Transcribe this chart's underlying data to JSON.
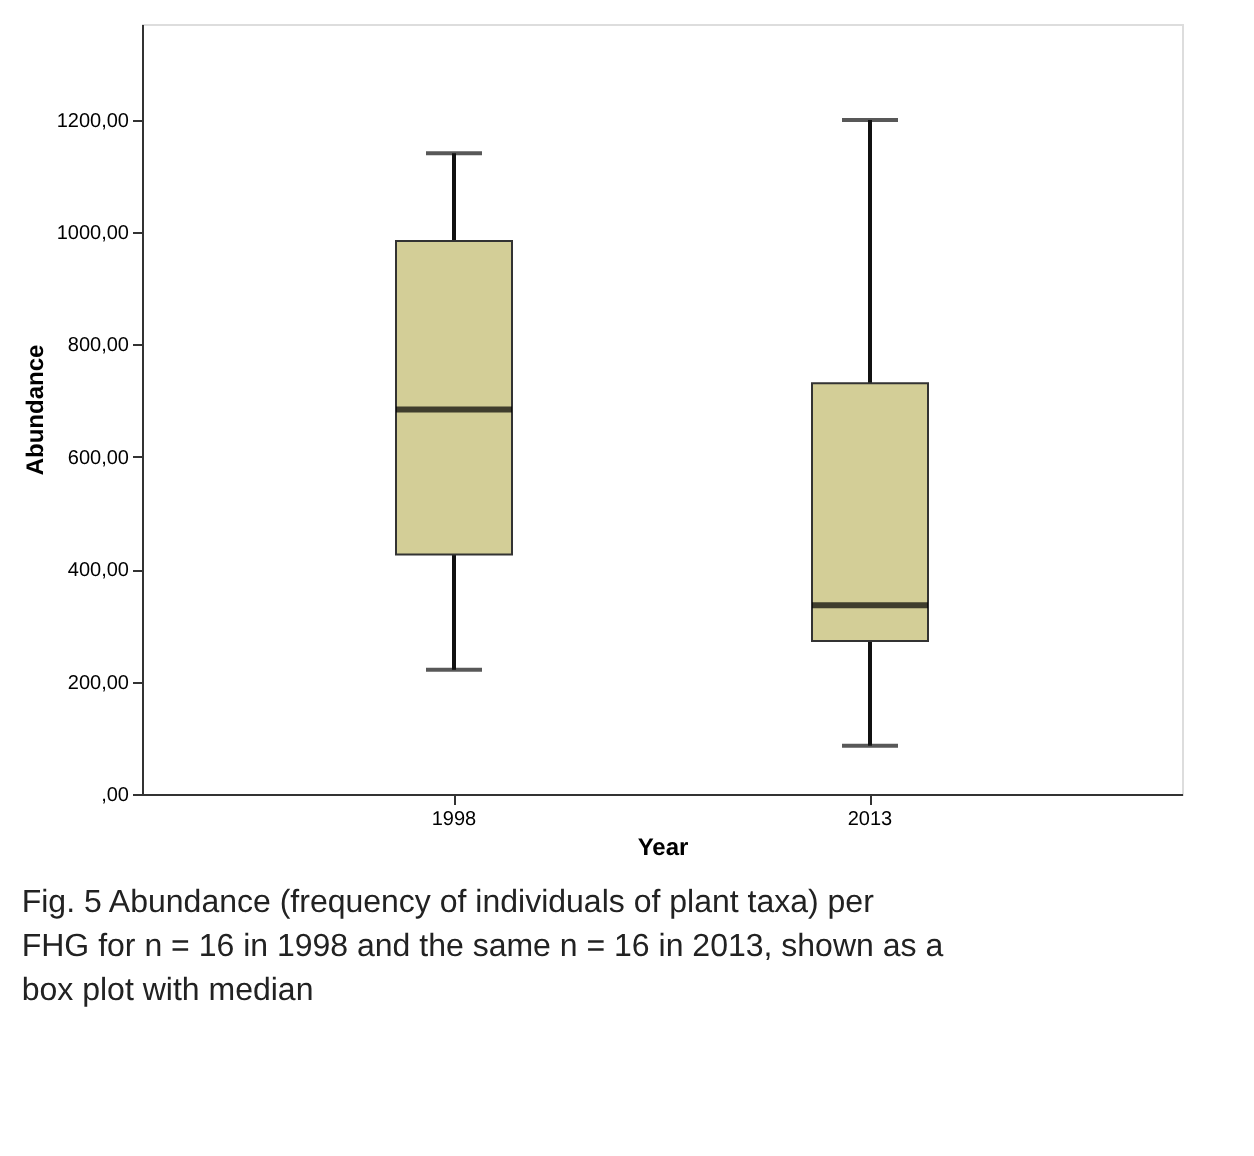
{
  "chart_data": {
    "type": "box",
    "categories": [
      "1998",
      "2013"
    ],
    "boxes": [
      {
        "low": 221,
        "q1": 426,
        "median": 684,
        "q3": 984,
        "high": 1140
      },
      {
        "low": 86,
        "q1": 272,
        "median": 336,
        "q3": 731,
        "high": 1199
      }
    ],
    "color": "#d3ce97",
    "xlabel": "Year",
    "ylabel": "Abundance",
    "ylim": [
      0,
      1370
    ],
    "yticks": [
      {
        "value": 0,
        "label": ",00"
      },
      {
        "value": 200,
        "label": "200,00"
      },
      {
        "value": 400,
        "label": "400,00"
      },
      {
        "value": 600,
        "label": "600,00"
      },
      {
        "value": 800,
        "label": "800,00"
      },
      {
        "value": 1000,
        "label": "1000,00"
      },
      {
        "value": 1200,
        "label": "1200,00"
      }
    ],
    "grid": false,
    "annotations": [
      "Fig. 5 Abundance (frequency of individuals of plant taxa) per FHG for n = 16 in 1998 and the same n = 16 in 2013, shown as a box plot with median"
    ]
  }
}
